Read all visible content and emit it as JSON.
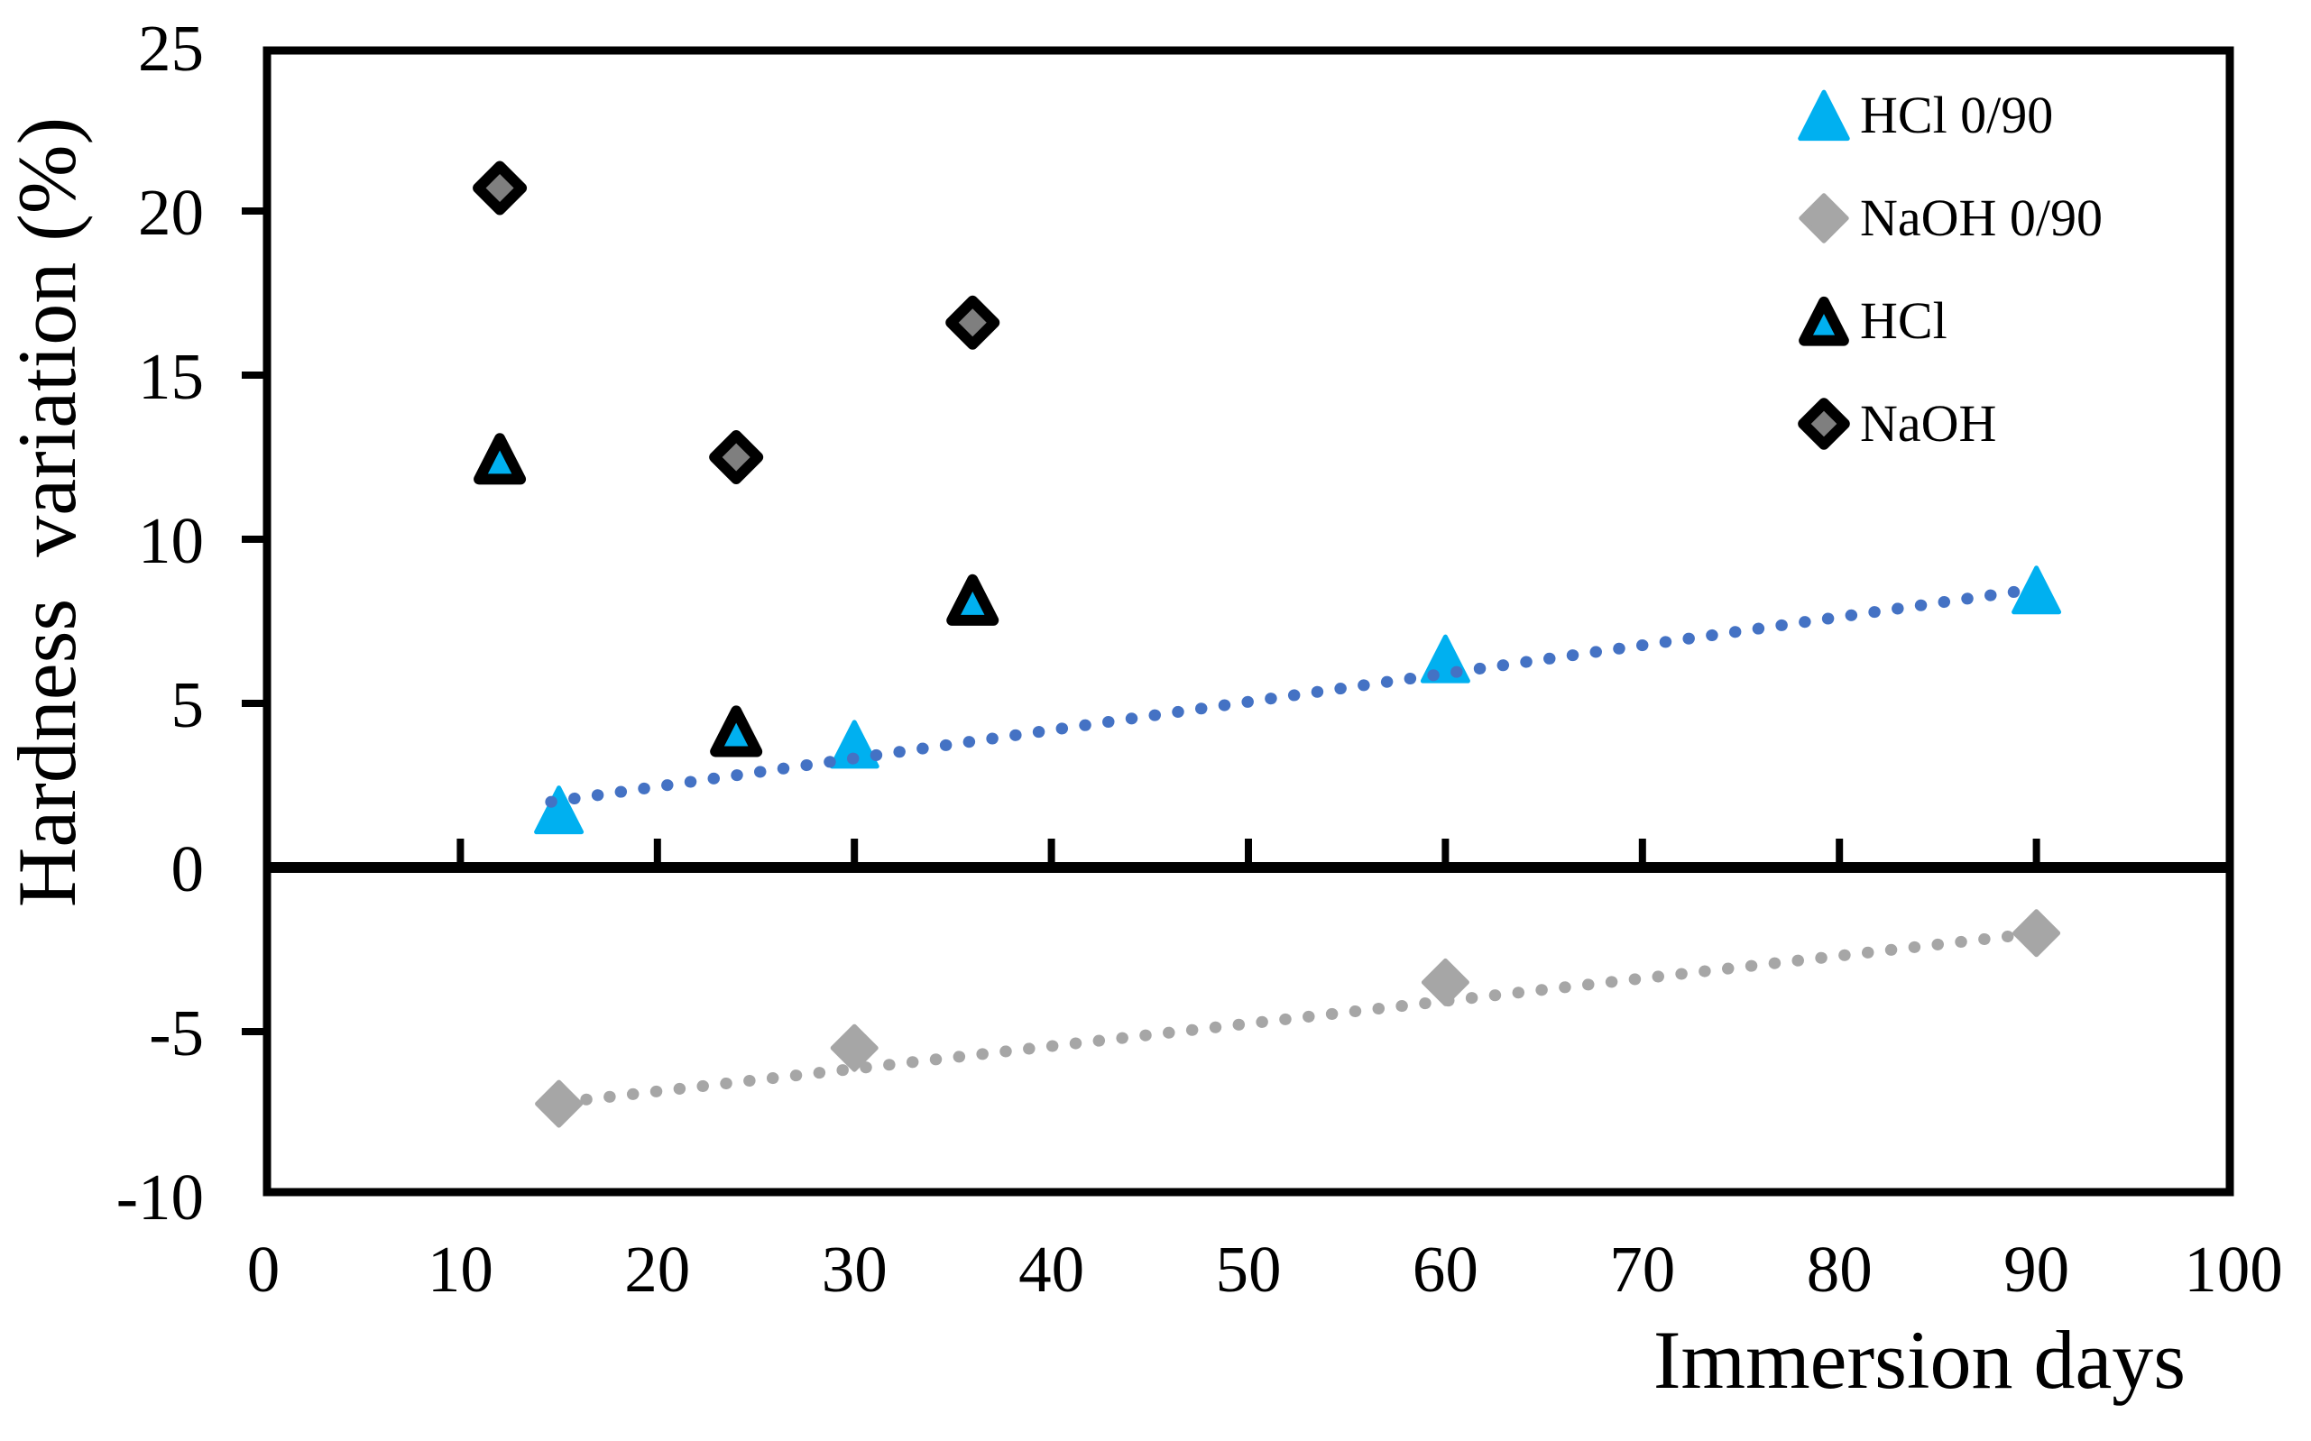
{
  "chart_data": {
    "type": "scatter",
    "title": "",
    "xlabel": "Immersion days",
    "ylabel": "Hardness  variation (%)",
    "x_axis": {
      "min": 0,
      "max": 100,
      "tick_step": 10,
      "tick_labels": [
        "0",
        "10",
        "20",
        "30",
        "40",
        "50",
        "60",
        "70",
        "80",
        "90",
        "100"
      ]
    },
    "y_axis": {
      "min": -10,
      "max": 25,
      "tick_step": 5,
      "tick_labels": [
        "25",
        "20",
        "15",
        "10",
        "5",
        "0",
        "-5",
        "-10"
      ],
      "side_tick_values": [
        20,
        15,
        10,
        5,
        -5
      ]
    },
    "grid": false,
    "legend_position": "top-right-inside",
    "series": [
      {
        "name": "HCl 0/90",
        "marker": "triangle",
        "fill": "#00b0f0",
        "outline": null,
        "points": [
          {
            "x": 15,
            "y": 1.7
          },
          {
            "x": 30,
            "y": 3.7
          },
          {
            "x": 60,
            "y": 6.3
          },
          {
            "x": 90,
            "y": 8.4
          }
        ]
      },
      {
        "name": "NaOH 0/90",
        "marker": "diamond",
        "fill": "#a6a6a6",
        "outline": null,
        "points": [
          {
            "x": 15,
            "y": -7.2
          },
          {
            "x": 30,
            "y": -5.5
          },
          {
            "x": 60,
            "y": -3.5
          },
          {
            "x": 90,
            "y": -2.0
          }
        ]
      },
      {
        "name": "HCl",
        "marker": "triangle",
        "fill": "#00b0f0",
        "outline": "#000000",
        "points": [
          {
            "x": 12,
            "y": 12.4
          },
          {
            "x": 24,
            "y": 4.1
          },
          {
            "x": 36,
            "y": 8.1
          }
        ]
      },
      {
        "name": "NaOH",
        "marker": "diamond",
        "fill": "#7f7f7f",
        "outline": "#000000",
        "points": [
          {
            "x": 12,
            "y": 20.7
          },
          {
            "x": 24,
            "y": 12.5
          },
          {
            "x": 36,
            "y": 16.6
          }
        ]
      }
    ],
    "trendlines": [
      {
        "series": "HCl 0/90",
        "style": "dotted",
        "color": "#4472c4",
        "from": {
          "x": 14.6,
          "y": 2.0
        },
        "to": {
          "x": 89.5,
          "y": 8.45
        }
      },
      {
        "series": "NaOH 0/90",
        "style": "dotted",
        "color": "#a6a6a6",
        "from": {
          "x": 15.2,
          "y": -7.15
        },
        "to": {
          "x": 89.3,
          "y": -2.05
        }
      }
    ],
    "colors": {
      "axis": "#000000",
      "cyan": "#00b0f0",
      "trend_blue": "#4472c4",
      "light_gray": "#a6a6a6",
      "mid_gray": "#7f7f7f"
    }
  }
}
